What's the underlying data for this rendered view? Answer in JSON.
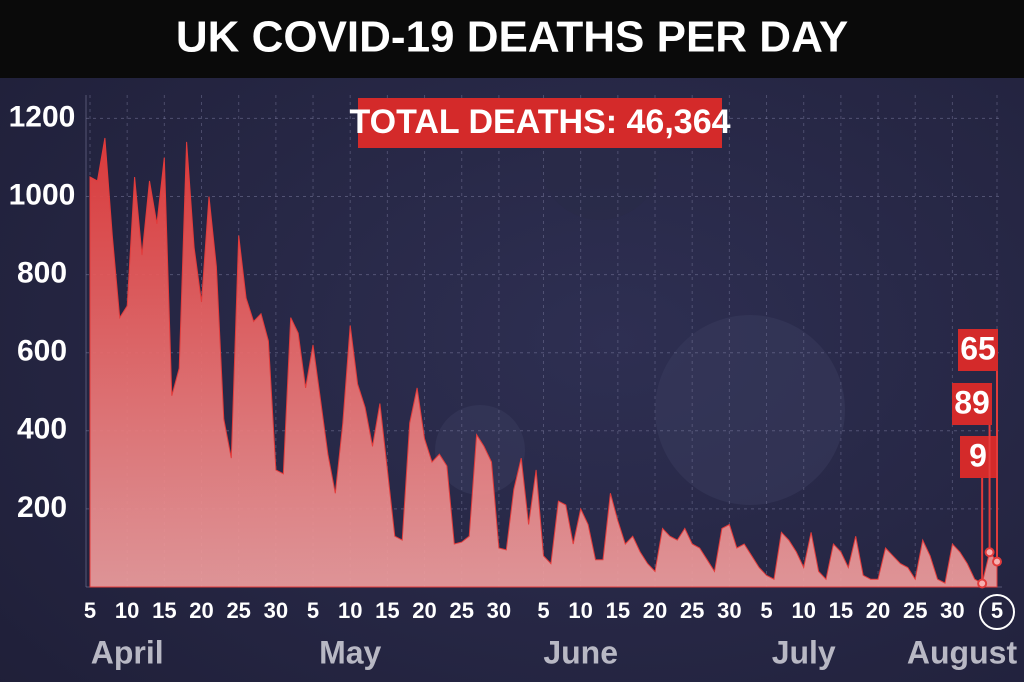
{
  "chart_data": {
    "type": "area",
    "title": "UK COVID-19 DEATHS PER DAY",
    "annotation": "TOTAL DEATHS: 46,364",
    "months": [
      "April",
      "May",
      "June",
      "July",
      "August"
    ],
    "categories": [
      "5",
      null,
      null,
      null,
      null,
      "10",
      null,
      null,
      null,
      null,
      "15",
      null,
      null,
      null,
      null,
      "20",
      null,
      null,
      null,
      null,
      "25",
      null,
      null,
      null,
      null,
      "30",
      null,
      null,
      null,
      null,
      "5",
      null,
      null,
      null,
      null,
      "10",
      null,
      null,
      null,
      null,
      "15",
      null,
      null,
      null,
      null,
      "20",
      null,
      null,
      null,
      null,
      "25",
      null,
      null,
      null,
      null,
      "30",
      null,
      null,
      null,
      null,
      null,
      "5",
      null,
      null,
      null,
      null,
      "10",
      null,
      null,
      null,
      null,
      "15",
      null,
      null,
      null,
      null,
      "20",
      null,
      null,
      null,
      null,
      "25",
      null,
      null,
      null,
      null,
      "30",
      null,
      null,
      null,
      null,
      "5",
      null,
      null,
      null,
      null,
      "10",
      null,
      null,
      null,
      null,
      "15",
      null,
      null,
      null,
      null,
      "20",
      null,
      null,
      null,
      null,
      "25",
      null,
      null,
      null,
      null,
      "30",
      null,
      null,
      null,
      null,
      null,
      "5"
    ],
    "values": [
      1050,
      1040,
      1150,
      900,
      690,
      720,
      1050,
      850,
      1040,
      930,
      1100,
      490,
      560,
      1140,
      870,
      730,
      1000,
      820,
      430,
      330,
      900,
      740,
      680,
      700,
      630,
      300,
      290,
      690,
      650,
      510,
      620,
      480,
      340,
      240,
      420,
      670,
      520,
      460,
      360,
      470,
      300,
      130,
      120,
      420,
      510,
      380,
      320,
      340,
      310,
      110,
      115,
      130,
      390,
      360,
      320,
      100,
      95,
      250,
      330,
      160,
      300,
      80,
      60,
      220,
      210,
      110,
      200,
      160,
      70,
      70,
      240,
      170,
      110,
      130,
      90,
      60,
      40,
      150,
      130,
      120,
      150,
      110,
      100,
      70,
      40,
      150,
      160,
      100,
      110,
      80,
      50,
      30,
      20,
      140,
      120,
      90,
      50,
      140,
      40,
      20,
      110,
      90,
      50,
      130,
      30,
      20,
      20,
      100,
      80,
      60,
      50,
      20,
      120,
      80,
      20,
      10,
      110,
      90,
      60,
      20,
      9,
      89,
      65
    ],
    "color": "#e23b3b",
    "ylim": [
      0,
      1260
    ],
    "yticks": [
      200,
      400,
      600,
      800,
      1000,
      1200
    ],
    "grid": true
  }
}
